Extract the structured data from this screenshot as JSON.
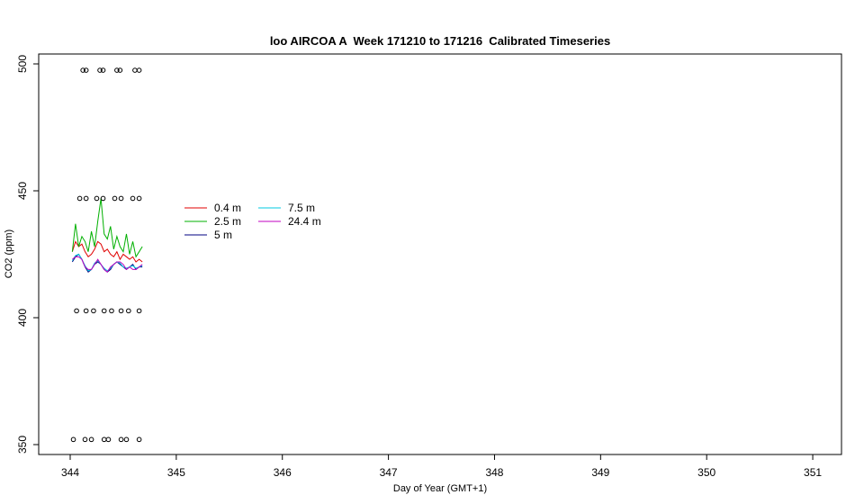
{
  "chart_data": {
    "type": "line",
    "title": "loo AIRCOA A  Week 171210 to 171216  Calibrated Timeseries",
    "x_label": "Day of Year (GMT+1)",
    "y_label": "CO2 (ppm)",
    "xlim": [
      343.703,
      351.271
    ],
    "ylim": [
      346.1,
      503.9
    ],
    "xticks": [
      344,
      345,
      346,
      347,
      348,
      349,
      350,
      351
    ],
    "yticks": [
      350,
      400,
      450,
      500
    ],
    "x": [
      344.02,
      344.05,
      344.08,
      344.11,
      344.14,
      344.17,
      344.2,
      344.23,
      344.26,
      344.29,
      344.32,
      344.35,
      344.38,
      344.41,
      344.44,
      344.47,
      344.5,
      344.53,
      344.56,
      344.59,
      344.62,
      344.65,
      344.68
    ],
    "series": [
      {
        "name": "0.4 m",
        "color": "#e00000",
        "values": [
          426,
          430,
          428,
          429,
          426,
          424,
          425,
          427,
          430,
          429,
          426,
          427,
          425,
          424,
          426,
          423,
          425,
          424,
          423,
          424,
          422,
          423,
          422
        ]
      },
      {
        "name": "2.5 m",
        "color": "#00b000",
        "values": [
          426,
          437,
          428,
          432,
          430,
          426,
          434,
          428,
          438,
          447,
          433,
          431,
          436,
          427,
          432,
          428,
          426,
          433,
          425,
          430,
          424,
          426,
          428
        ]
      },
      {
        "name": "5 m",
        "color": "#000080",
        "values": [
          422,
          424,
          425,
          423,
          420,
          418,
          419,
          421,
          422,
          421,
          419,
          418,
          419,
          421,
          422,
          421,
          420,
          419,
          420,
          421,
          419,
          420,
          420
        ]
      },
      {
        "name": "7.5 m",
        "color": "#00c8e0",
        "values": [
          422.5,
          424.5,
          425,
          423,
          420.5,
          418.5,
          419,
          421.5,
          422.5,
          421,
          419.5,
          418.5,
          419.5,
          421,
          422,
          421.5,
          420,
          419.5,
          420,
          420.5,
          419.5,
          420,
          420.5
        ]
      },
      {
        "name": "24.4 m",
        "color": "#c000c0",
        "values": [
          423,
          424,
          424,
          423,
          420,
          419,
          419,
          421,
          423,
          421,
          419,
          418,
          420,
          421,
          422,
          422,
          421,
          419,
          420,
          419,
          419,
          420,
          421
        ]
      }
    ],
    "markers": {
      "x": [
        344.12,
        344.15,
        344.28,
        344.31,
        344.44,
        344.47,
        344.61,
        344.65,
        344.09,
        344.15,
        344.25,
        344.31,
        344.42,
        344.48,
        344.59,
        344.65,
        344.06,
        344.15,
        344.22,
        344.32,
        344.39,
        344.48,
        344.55,
        344.65,
        344.03,
        344.14,
        344.2,
        344.32,
        344.36,
        344.48,
        344.53,
        344.65
      ],
      "y": [
        497.5,
        497.5,
        497.5,
        497.5,
        497.5,
        497.5,
        497.5,
        497.5,
        447,
        447,
        447,
        447,
        447,
        447,
        447,
        447,
        402.7,
        402.7,
        402.7,
        402.7,
        402.7,
        402.7,
        402.7,
        402.7,
        352,
        352,
        352,
        352,
        352,
        352,
        352,
        352
      ]
    }
  }
}
